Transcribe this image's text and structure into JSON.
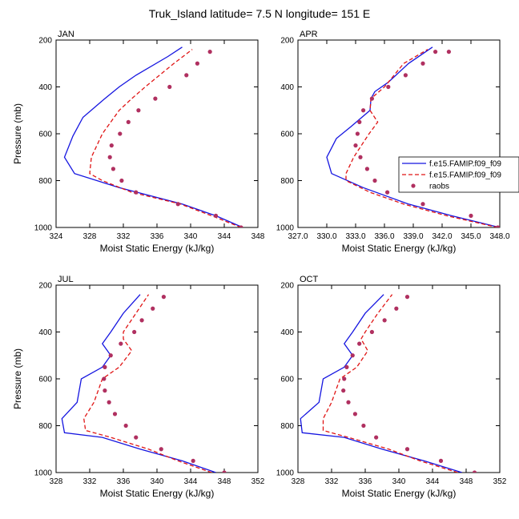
{
  "figure_title": "Truk_Island  latitude= 7.5 N longitude= 151 E",
  "colors": {
    "model1": "#1515e0",
    "model2": "#e01515",
    "obs": "#b03060",
    "axis": "#000000"
  },
  "legend": {
    "entries": [
      {
        "label": "f.e15.FAMIP.f09_f09",
        "style": "solid-line",
        "color": "#1515e0"
      },
      {
        "label": "f.e15.FAMIP.f09_f09",
        "style": "dashed-line",
        "color": "#e01515"
      },
      {
        "label": "raobs",
        "style": "dot",
        "color": "#b03060"
      }
    ]
  },
  "chart_data": [
    {
      "type": "line",
      "panel": "JAN",
      "xlabel": "Moist Static Energy (kJ/kg)",
      "ylabel": "Pressure (mb)",
      "xlim": [
        324,
        348
      ],
      "ylim": [
        1000,
        200
      ],
      "xticks": [
        324,
        328,
        332,
        336,
        340,
        344,
        348
      ],
      "xtick_labels": [
        "324",
        "328",
        "332",
        "336",
        "340",
        "344",
        "348"
      ],
      "yticks": [
        200,
        400,
        600,
        800,
        1000
      ],
      "ytick_labels": [
        "200",
        "400",
        "600",
        "800",
        "1000"
      ],
      "series": [
        {
          "style": "solid",
          "color": "#1515e0",
          "x": [
            346.2,
            343.0,
            339.0,
            331.5,
            326.2,
            325.0,
            326.0,
            327.2,
            329.8,
            331.5,
            333.5,
            337.3,
            339.0
          ],
          "y": [
            1000,
            950,
            900,
            830,
            770,
            700,
            610,
            530,
            450,
            400,
            350,
            270,
            230
          ]
        },
        {
          "style": "dashed",
          "color": "#e01515",
          "x": [
            346.0,
            342.5,
            338.8,
            333.0,
            329.5,
            328.0,
            328.2,
            329.5,
            331.5,
            333.0,
            334.6,
            338.0,
            340.2
          ],
          "y": [
            1000,
            950,
            900,
            850,
            800,
            770,
            700,
            600,
            500,
            450,
            400,
            300,
            240
          ]
        },
        {
          "style": "dots",
          "color": "#b03060",
          "x": [
            346.0,
            343.0,
            338.5,
            333.5,
            331.8,
            330.8,
            330.4,
            330.6,
            331.6,
            332.6,
            333.8,
            335.8,
            337.5,
            339.5,
            340.8,
            342.3
          ],
          "y": [
            1000,
            950,
            900,
            850,
            800,
            750,
            700,
            650,
            600,
            550,
            500,
            450,
            400,
            350,
            300,
            250
          ]
        }
      ]
    },
    {
      "type": "line",
      "panel": "APR",
      "xlabel": "Moist Static Energy (kJ/kg)",
      "ylabel": "Pressure (mb)",
      "xlim": [
        327,
        348
      ],
      "ylim": [
        1000,
        200
      ],
      "xticks": [
        327,
        330,
        333,
        336,
        339,
        342,
        345,
        348
      ],
      "xtick_labels": [
        "327.0",
        "330.0",
        "333.0",
        "336.0",
        "339.0",
        "342.0",
        "345.0",
        "348.0"
      ],
      "yticks": [
        200,
        400,
        600,
        800,
        1000
      ],
      "ytick_labels": [
        "200",
        "400",
        "600",
        "800",
        "1000"
      ],
      "series": [
        {
          "style": "solid",
          "color": "#1515e0",
          "x": [
            348.0,
            343.0,
            338.5,
            333.8,
            330.5,
            330.0,
            331.0,
            332.5,
            334.5,
            334.6,
            335.0,
            336.4,
            338.5,
            341.0
          ],
          "y": [
            1000,
            950,
            900,
            830,
            770,
            700,
            620,
            570,
            500,
            450,
            420,
            380,
            300,
            230
          ]
        },
        {
          "style": "dashed",
          "color": "#e01515",
          "x": [
            347.8,
            342.5,
            338.0,
            334.5,
            332.0,
            332.0,
            332.8,
            334.4,
            335.3,
            334.5,
            334.6,
            336.0,
            338.0,
            340.5
          ],
          "y": [
            1000,
            950,
            900,
            850,
            800,
            770,
            700,
            600,
            550,
            500,
            450,
            400,
            300,
            240
          ]
        },
        {
          "style": "dots",
          "color": "#b03060",
          "x": [
            347.8,
            345.0,
            340.0,
            336.3,
            335.0,
            334.2,
            333.5,
            333.0,
            333.2,
            333.4,
            333.8,
            334.7,
            336.4,
            338.2,
            340.0,
            341.3,
            342.7
          ],
          "y": [
            1000,
            950,
            900,
            850,
            800,
            750,
            700,
            650,
            600,
            550,
            500,
            450,
            400,
            350,
            300,
            250,
            250
          ]
        }
      ]
    },
    {
      "type": "line",
      "panel": "JUL",
      "xlabel": "Moist Static Energy (kJ/kg)",
      "ylabel": "Pressure (mb)",
      "xlim": [
        328,
        352
      ],
      "ylim": [
        1000,
        200
      ],
      "xticks": [
        328,
        332,
        336,
        340,
        344,
        348,
        352
      ],
      "xtick_labels": [
        "328",
        "332",
        "336",
        "340",
        "344",
        "348",
        "352"
      ],
      "yticks": [
        200,
        400,
        600,
        800,
        1000
      ],
      "ytick_labels": [
        "200",
        "400",
        "600",
        "800",
        "1000"
      ],
      "series": [
        {
          "style": "solid",
          "color": "#1515e0",
          "x": [
            347.0,
            343.0,
            338.0,
            333.5,
            329.0,
            328.7,
            330.5,
            331.0,
            333.5,
            334.5,
            333.5,
            334.5,
            336.0,
            338.0
          ],
          "y": [
            1000,
            950,
            900,
            850,
            830,
            770,
            700,
            600,
            550,
            500,
            450,
            400,
            320,
            240
          ]
        },
        {
          "style": "dashed",
          "color": "#e01515",
          "x": [
            346.5,
            342.5,
            339.0,
            334.5,
            331.5,
            331.3,
            332.5,
            333.5,
            335.5,
            337.0,
            336.0,
            336.0,
            337.5,
            339.0
          ],
          "y": [
            1000,
            950,
            900,
            850,
            820,
            770,
            700,
            600,
            550,
            480,
            430,
            400,
            320,
            240
          ]
        },
        {
          "style": "dots",
          "color": "#b03060",
          "x": [
            348.0,
            344.3,
            340.5,
            337.5,
            336.3,
            335.0,
            334.3,
            333.8,
            333.7,
            333.8,
            334.5,
            335.7,
            337.3,
            338.2,
            339.5,
            340.8
          ],
          "y": [
            1000,
            950,
            900,
            850,
            800,
            750,
            700,
            650,
            600,
            550,
            500,
            450,
            400,
            350,
            300,
            250
          ]
        }
      ]
    },
    {
      "type": "line",
      "panel": "OCT",
      "xlabel": "Moist Static Energy (kJ/kg)",
      "ylabel": "Pressure (mb)",
      "xlim": [
        328,
        352
      ],
      "ylim": [
        1000,
        200
      ],
      "xticks": [
        328,
        332,
        336,
        340,
        344,
        348,
        352
      ],
      "xtick_labels": [
        "328",
        "332",
        "336",
        "340",
        "344",
        "348",
        "352"
      ],
      "yticks": [
        200,
        400,
        600,
        800,
        1000
      ],
      "ytick_labels": [
        "200",
        "400",
        "600",
        "800",
        "1000"
      ],
      "series": [
        {
          "style": "solid",
          "color": "#1515e0",
          "x": [
            347.5,
            343.0,
            338.0,
            333.5,
            328.5,
            328.3,
            330.5,
            331.0,
            333.5,
            334.5,
            333.5,
            334.5,
            336.0,
            338.2
          ],
          "y": [
            1000,
            950,
            900,
            850,
            830,
            770,
            700,
            600,
            550,
            500,
            450,
            400,
            320,
            240
          ]
        },
        {
          "style": "dashed",
          "color": "#e01515",
          "x": [
            347.0,
            342.5,
            338.8,
            334.0,
            331.0,
            331.0,
            332.0,
            333.0,
            335.0,
            336.3,
            335.5,
            336.0,
            337.5,
            339.2
          ],
          "y": [
            1000,
            950,
            900,
            850,
            820,
            770,
            700,
            600,
            550,
            480,
            430,
            400,
            320,
            240
          ]
        },
        {
          "style": "dots",
          "color": "#b03060",
          "x": [
            349.0,
            345.0,
            341.0,
            337.3,
            335.8,
            334.8,
            334.0,
            333.4,
            333.5,
            333.8,
            334.5,
            335.3,
            336.8,
            338.3,
            339.7,
            341.0
          ],
          "y": [
            1000,
            950,
            900,
            850,
            800,
            750,
            700,
            650,
            600,
            550,
            500,
            450,
            400,
            350,
            300,
            250
          ]
        }
      ]
    }
  ]
}
